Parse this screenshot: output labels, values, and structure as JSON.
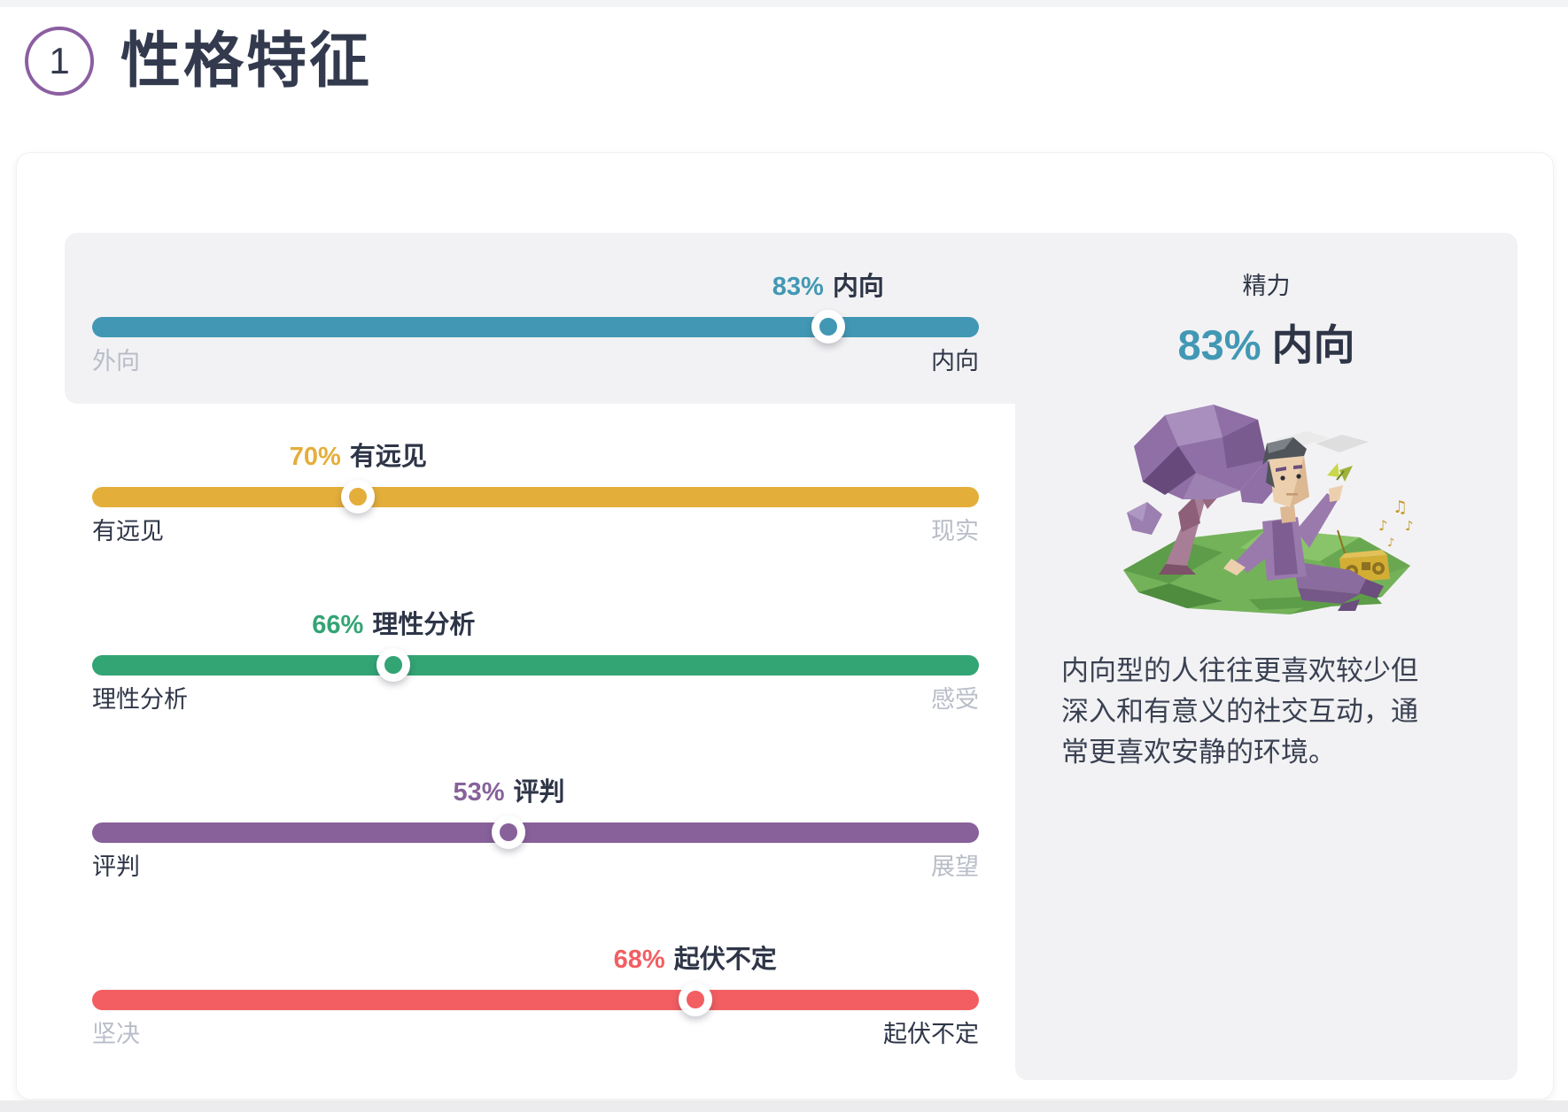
{
  "header": {
    "section_number": "1",
    "title": "性格特征"
  },
  "traits": [
    {
      "percent": 83,
      "dominant_label": "内向",
      "dominant_side": "right",
      "left_label": "外向",
      "right_label": "内向",
      "color": "#4298b4",
      "highlighted": true
    },
    {
      "percent": 70,
      "dominant_label": "有远见",
      "dominant_side": "left",
      "left_label": "有远见",
      "right_label": "现实",
      "color": "#e4ae3a",
      "highlighted": false
    },
    {
      "percent": 66,
      "dominant_label": "理性分析",
      "dominant_side": "left",
      "left_label": "理性分析",
      "right_label": "感受",
      "color": "#33a474",
      "highlighted": false
    },
    {
      "percent": 53,
      "dominant_label": "评判",
      "dominant_side": "left",
      "left_label": "评判",
      "right_label": "展望",
      "color": "#88619a",
      "highlighted": false
    },
    {
      "percent": 68,
      "dominant_label": "起伏不定",
      "dominant_side": "right",
      "left_label": "坚决",
      "right_label": "起伏不定",
      "color": "#f25e62",
      "highlighted": false
    }
  ],
  "detail_panel": {
    "category": "精力",
    "percent_text": "83%",
    "trait": "内向",
    "accent_color": "#4298b4",
    "description_lines": [
      "内向型的人往往更喜欢较少但",
      "深入和有意义的社交互动，通",
      "常更喜欢安静的环境。"
    ],
    "illustration": "introvert-sitting-under-tree-with-butterfly-and-radio"
  },
  "colors": {
    "highlight_bg": "#f2f2f4",
    "text_dark": "#2e3547",
    "text_muted": "#b9bdc8",
    "section_circle_border": "#8b5fa2"
  }
}
